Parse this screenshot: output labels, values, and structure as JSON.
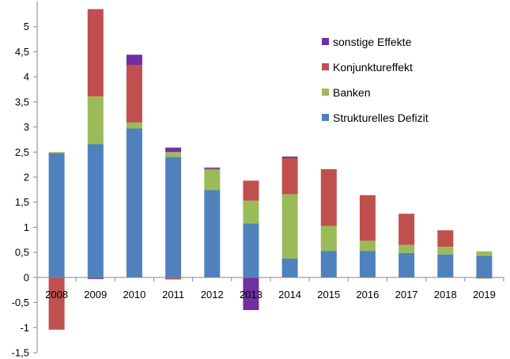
{
  "chart_data": {
    "type": "bar",
    "stacked": true,
    "categories": [
      "2008",
      "2009",
      "2010",
      "2011",
      "2012",
      "2013",
      "2014",
      "2015",
      "2016",
      "2017",
      "2018",
      "2019"
    ],
    "ylim": [
      -1.5,
      5.5
    ],
    "yticks": [
      {
        "value": 5,
        "label": "5"
      },
      {
        "value": 4.5,
        "label": "4,5"
      },
      {
        "value": 4,
        "label": "4"
      },
      {
        "value": 3.5,
        "label": "3,5"
      },
      {
        "value": 3,
        "label": "3"
      },
      {
        "value": 2.5,
        "label": "2,5"
      },
      {
        "value": 2,
        "label": "2"
      },
      {
        "value": 1.5,
        "label": "1,5"
      },
      {
        "value": 1,
        "label": "1"
      },
      {
        "value": 0.5,
        "label": "0,5"
      },
      {
        "value": 0,
        "label": "0"
      },
      {
        "value": -0.5,
        "label": "-0,5"
      },
      {
        "value": -1,
        "label": "-1"
      },
      {
        "value": -1.5,
        "label": "-1,5"
      }
    ],
    "grid": false,
    "legend_position": "top-right",
    "series": [
      {
        "name": "Strukturelles Defizit",
        "color": "#4F81BD",
        "values": [
          2.48,
          2.66,
          2.97,
          2.4,
          1.74,
          1.08,
          0.38,
          0.53,
          0.53,
          0.49,
          0.46,
          0.43
        ]
      },
      {
        "name": "Banken",
        "color": "#9BBB59",
        "values": [
          0.02,
          0.95,
          0.12,
          0.1,
          0.41,
          0.45,
          1.28,
          0.5,
          0.2,
          0.16,
          0.15,
          0.09
        ]
      },
      {
        "name": "Konjunktureffekt",
        "color": "#C0504D",
        "values": [
          -1.04,
          1.74,
          1.14,
          -0.04,
          0.02,
          0.4,
          0.72,
          1.13,
          0.91,
          0.62,
          0.33,
          -0.02
        ]
      },
      {
        "name": "sonstige Effekte",
        "color": "#7030A0",
        "values": [
          0.0,
          -0.03,
          0.21,
          0.09,
          0.02,
          -0.65,
          0.03,
          0.0,
          0.0,
          0.0,
          0.0,
          0.0
        ]
      }
    ],
    "legend_order": [
      "sonstige Effekte",
      "Konjunktureffekt",
      "Banken",
      "Strukturelles Defizit"
    ]
  }
}
